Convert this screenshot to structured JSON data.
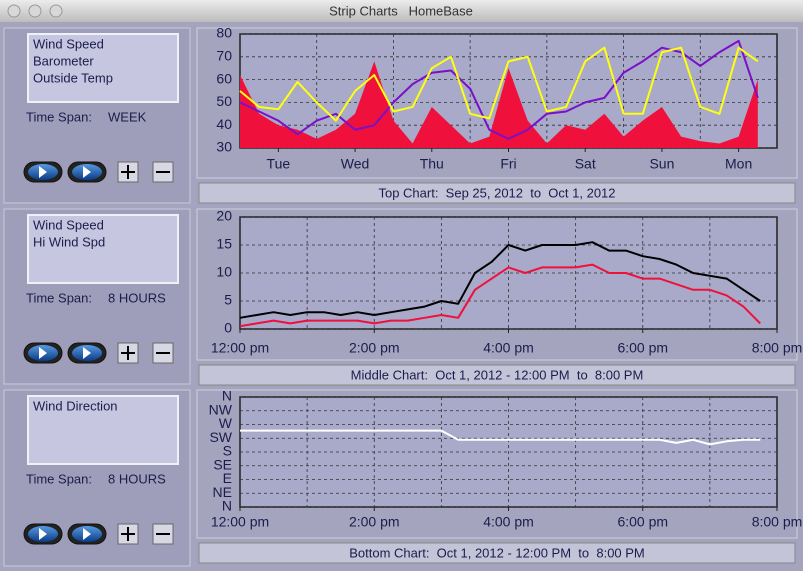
{
  "window": {
    "title": "Strip Charts   HomeBase"
  },
  "panels": [
    {
      "time_span_label": "Time Span:",
      "time_span": "WEEK"
    },
    {
      "time_span_label": "Time Span:",
      "time_span": "8 HOURS"
    },
    {
      "time_span_label": "Time Span:",
      "time_span": "8 HOURS"
    }
  ],
  "chart_data": [
    {
      "type": "line",
      "title": "Top Chart:  Sep 25, 2012  to  Oct 1, 2012",
      "x": [
        0,
        0.25,
        0.5,
        0.75,
        1,
        1.25,
        1.5,
        1.75,
        2,
        2.25,
        2.5,
        2.75,
        3,
        3.25,
        3.5,
        3.75,
        4,
        4.25,
        4.5,
        4.75,
        5,
        5.25,
        5.5,
        5.75,
        6,
        6.25,
        6.5,
        6.75
      ],
      "xlim": [
        0,
        7
      ],
      "xticks": [
        {
          "value": 0.5,
          "label": "Tue"
        },
        {
          "value": 1.5,
          "label": "Wed"
        },
        {
          "value": 2.5,
          "label": "Thu"
        },
        {
          "value": 3.5,
          "label": "Fri"
        },
        {
          "value": 4.5,
          "label": "Sat"
        },
        {
          "value": 5.5,
          "label": "Sun"
        },
        {
          "value": 6.5,
          "label": "Mon"
        }
      ],
      "xgrid": [
        1,
        2,
        3,
        4,
        5,
        6
      ],
      "ylim": [
        30,
        80
      ],
      "yticks": [
        30,
        40,
        50,
        60,
        70,
        80
      ],
      "grid": true,
      "series": [
        {
          "name": "Wind Speed",
          "color": "#f0103c",
          "style": "area",
          "values": [
            62,
            45,
            40,
            38,
            34,
            38,
            45,
            68,
            42,
            32,
            48,
            40,
            32,
            35,
            65,
            42,
            32,
            40,
            38,
            45,
            35,
            42,
            48,
            35,
            33,
            32,
            35,
            60
          ]
        },
        {
          "name": "Barometer",
          "color": "#7a10c8",
          "style": "line",
          "values": [
            50,
            46,
            42,
            36,
            42,
            45,
            38,
            40,
            50,
            58,
            63,
            64,
            56,
            38,
            34,
            38,
            45,
            46,
            50,
            52,
            63,
            68,
            74,
            72,
            66,
            72,
            77,
            52
          ]
        },
        {
          "name": "Outside Temp",
          "color": "#ffff10",
          "style": "line",
          "values": [
            55,
            48,
            47,
            59,
            50,
            42,
            55,
            62,
            46,
            48,
            65,
            70,
            45,
            43,
            68,
            70,
            46,
            48,
            68,
            74,
            45,
            45,
            72,
            74,
            48,
            45,
            74,
            68
          ]
        }
      ]
    },
    {
      "type": "line",
      "title": "Middle Chart:  Oct 1, 2012 - 12:00 PM  to  8:00 PM",
      "x": [
        12,
        12.25,
        12.5,
        12.75,
        13,
        13.25,
        13.5,
        13.75,
        14,
        14.25,
        14.5,
        14.75,
        15,
        15.25,
        15.5,
        15.75,
        16,
        16.25,
        16.5,
        16.75,
        17,
        17.25,
        17.5,
        17.75,
        18,
        18.25,
        18.5,
        18.75,
        19,
        19.25,
        19.5,
        19.75
      ],
      "xlim": [
        12,
        20
      ],
      "xticks": [
        {
          "value": 12,
          "label": "12:00 pm"
        },
        {
          "value": 14,
          "label": "2:00 pm"
        },
        {
          "value": 16,
          "label": "4:00 pm"
        },
        {
          "value": 18,
          "label": "6:00 pm"
        },
        {
          "value": 20,
          "label": "8:00 pm"
        }
      ],
      "xgrid": [
        13,
        14,
        15,
        16,
        17,
        18,
        19
      ],
      "ylim": [
        0,
        20
      ],
      "yticks": [
        0,
        5,
        10,
        15,
        20
      ],
      "grid": true,
      "series": [
        {
          "name": "Wind Speed",
          "color": "#f0103c",
          "style": "line",
          "values": [
            0.5,
            1,
            1.5,
            1,
            1.5,
            1.5,
            1.5,
            1.5,
            1,
            1.5,
            1.5,
            2,
            2.5,
            2,
            7,
            9,
            11,
            10,
            11,
            11,
            11,
            11.5,
            10,
            10,
            9,
            9,
            8,
            7,
            7,
            6,
            4,
            1
          ]
        },
        {
          "name": "Hi Wind Spd",
          "color": "#000000",
          "style": "line",
          "values": [
            2,
            2.5,
            3,
            2.5,
            3,
            3,
            2.5,
            3,
            2.5,
            3,
            3.5,
            4,
            5,
            4.5,
            10,
            12,
            15,
            14,
            15,
            15,
            15,
            15.5,
            14,
            14,
            13,
            12.5,
            11.5,
            10,
            9.5,
            9,
            7,
            5
          ]
        }
      ]
    },
    {
      "type": "line",
      "title": "Bottom Chart:  Oct 1, 2012 - 12:00 PM  to  8:00 PM",
      "x": [
        12,
        12.25,
        12.5,
        12.75,
        13,
        13.25,
        13.5,
        13.75,
        14,
        14.25,
        14.5,
        14.75,
        15,
        15.25,
        15.5,
        15.75,
        16,
        16.25,
        16.5,
        16.75,
        17,
        17.25,
        17.5,
        17.75,
        18,
        18.25,
        18.5,
        18.75,
        19,
        19.25,
        19.5,
        19.75
      ],
      "xlim": [
        12,
        20
      ],
      "xticks": [
        {
          "value": 12,
          "label": "12:00 pm"
        },
        {
          "value": 14,
          "label": "2:00 pm"
        },
        {
          "value": 16,
          "label": "4:00 pm"
        },
        {
          "value": 18,
          "label": "6:00 pm"
        },
        {
          "value": 20,
          "label": "8:00 pm"
        }
      ],
      "xgrid": [
        13,
        14,
        15,
        16,
        17,
        18,
        19
      ],
      "ylim": [
        0,
        360
      ],
      "yticks": [
        {
          "value": 0,
          "label": "N"
        },
        {
          "value": 45,
          "label": "NE"
        },
        {
          "value": 90,
          "label": "E"
        },
        {
          "value": 135,
          "label": "SE"
        },
        {
          "value": 180,
          "label": "S"
        },
        {
          "value": 225,
          "label": "SW"
        },
        {
          "value": 270,
          "label": "W"
        },
        {
          "value": 315,
          "label": "NW"
        },
        {
          "value": 360,
          "label": "N"
        }
      ],
      "grid": true,
      "series": [
        {
          "name": "Wind Direction",
          "color": "#ffffff",
          "style": "line",
          "values": [
            250,
            250,
            250,
            250,
            250,
            250,
            250,
            250,
            250,
            250,
            250,
            250,
            250,
            220,
            220,
            220,
            220,
            220,
            220,
            220,
            220,
            220,
            220,
            220,
            220,
            220,
            210,
            220,
            205,
            215,
            220,
            220
          ]
        }
      ]
    }
  ]
}
